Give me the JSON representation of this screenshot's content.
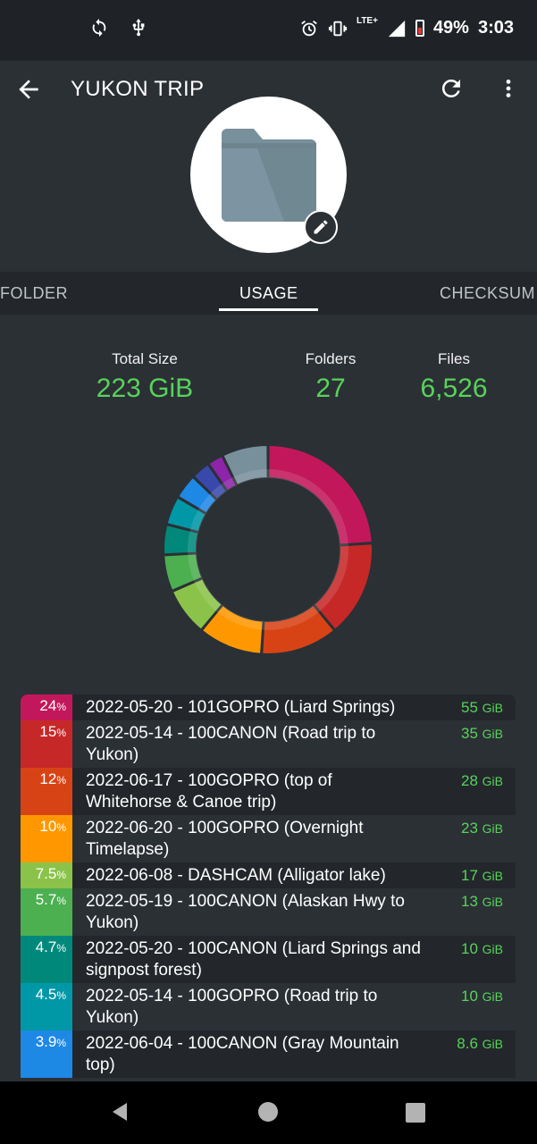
{
  "status_bar": {
    "battery": "49%",
    "time": "3:03",
    "network": "LTE+"
  },
  "app_bar": {
    "title": "YUKON TRIP"
  },
  "tabs": [
    {
      "label": "FOLDER"
    },
    {
      "label": "USAGE"
    },
    {
      "label": "CHECKSUM"
    }
  ],
  "stats": [
    {
      "label": "Total Size",
      "value": "223 GiB"
    },
    {
      "label": "Folders",
      "value": "27"
    },
    {
      "label": "Files",
      "value": "6,526"
    }
  ],
  "usage": [
    {
      "pct": "24",
      "name": "2022-05-20 - 101GOPRO (Liard Springs)",
      "size": "55",
      "color": "#c2185b"
    },
    {
      "pct": "15",
      "name": "2022-05-14 - 100CANON (Road trip to Yukon)",
      "size": "35",
      "color": "#c62828"
    },
    {
      "pct": "12",
      "name": "2022-06-17 - 100GOPRO (top of Whitehorse & Canoe trip)",
      "size": "28",
      "color": "#d84315"
    },
    {
      "pct": "10",
      "name": "2022-06-20 - 100GOPRO (Overnight Timelapse)",
      "size": "23",
      "color": "#ff9800"
    },
    {
      "pct": "7.5",
      "name": "2022-06-08 - DASHCAM (Alligator lake)",
      "size": "17",
      "color": "#8bc34a"
    },
    {
      "pct": "5.7",
      "name": "2022-05-19 - 100CANON (Alaskan Hwy to Yukon)",
      "size": "13",
      "color": "#4caf50"
    },
    {
      "pct": "4.7",
      "name": "2022-05-20 - 100CANON (Liard Springs and signpost forest)",
      "size": "10",
      "color": "#00897b"
    },
    {
      "pct": "4.5",
      "name": "2022-05-14 - 100GOPRO (Road trip to Yukon)",
      "size": "10",
      "color": "#0097a7"
    },
    {
      "pct": "3.9",
      "name": "2022-06-04 - 100CANON (Gray Mountain top)",
      "size": "8.6",
      "color": "#1e88e5"
    }
  ],
  "donut_extra": [
    {
      "pct": 3.0,
      "color": "#3949ab"
    },
    {
      "pct": 2.5,
      "color": "#8e24aa"
    },
    {
      "pct": 7.2,
      "color": "#78909c"
    }
  ],
  "units": {
    "pct": "%",
    "size": "GiB"
  }
}
